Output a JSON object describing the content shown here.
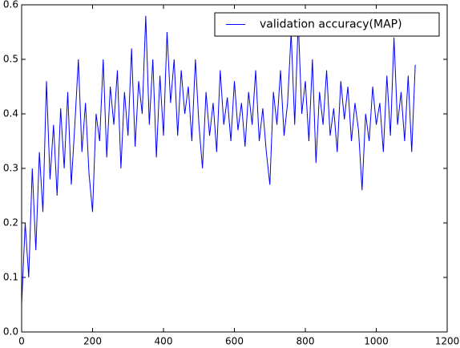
{
  "chart_data": {
    "type": "line",
    "x": [
      0,
      10,
      20,
      30,
      40,
      50,
      60,
      70,
      80,
      90,
      100,
      110,
      120,
      130,
      140,
      150,
      160,
      170,
      180,
      190,
      200,
      210,
      220,
      230,
      240,
      250,
      260,
      270,
      280,
      290,
      300,
      310,
      320,
      330,
      340,
      350,
      360,
      370,
      380,
      390,
      400,
      410,
      420,
      430,
      440,
      450,
      460,
      470,
      480,
      490,
      500,
      510,
      520,
      530,
      540,
      550,
      560,
      570,
      580,
      590,
      600,
      610,
      620,
      630,
      640,
      650,
      660,
      670,
      680,
      690,
      700,
      710,
      720,
      730,
      740,
      750,
      760,
      770,
      780,
      790,
      800,
      810,
      820,
      830,
      840,
      850,
      860,
      870,
      880,
      890,
      900,
      910,
      920,
      930,
      940,
      950,
      960,
      970,
      980,
      990,
      1000,
      1010,
      1020,
      1030,
      1040,
      1050,
      1060,
      1070,
      1080,
      1090,
      1100,
      1110
    ],
    "series": [
      {
        "name": "validation accuracy(MAP)",
        "color": "#0000ff",
        "values": [
          0.05,
          0.2,
          0.1,
          0.3,
          0.15,
          0.33,
          0.22,
          0.46,
          0.28,
          0.38,
          0.25,
          0.41,
          0.3,
          0.44,
          0.27,
          0.38,
          0.5,
          0.33,
          0.42,
          0.29,
          0.22,
          0.4,
          0.35,
          0.5,
          0.32,
          0.45,
          0.38,
          0.48,
          0.3,
          0.44,
          0.36,
          0.52,
          0.34,
          0.46,
          0.4,
          0.58,
          0.38,
          0.5,
          0.32,
          0.47,
          0.36,
          0.55,
          0.42,
          0.5,
          0.36,
          0.48,
          0.4,
          0.45,
          0.35,
          0.5,
          0.38,
          0.3,
          0.44,
          0.36,
          0.42,
          0.33,
          0.48,
          0.38,
          0.43,
          0.35,
          0.46,
          0.37,
          0.42,
          0.34,
          0.44,
          0.38,
          0.48,
          0.35,
          0.41,
          0.33,
          0.27,
          0.44,
          0.38,
          0.48,
          0.36,
          0.42,
          0.55,
          0.38,
          0.57,
          0.4,
          0.46,
          0.35,
          0.5,
          0.31,
          0.44,
          0.38,
          0.48,
          0.36,
          0.41,
          0.33,
          0.46,
          0.39,
          0.45,
          0.35,
          0.42,
          0.37,
          0.26,
          0.4,
          0.35,
          0.45,
          0.38,
          0.42,
          0.33,
          0.47,
          0.36,
          0.54,
          0.38,
          0.44,
          0.35,
          0.47,
          0.33,
          0.49
        ]
      }
    ],
    "xlim": [
      0,
      1200
    ],
    "xticks": [
      0,
      200,
      400,
      600,
      800,
      1000,
      1200
    ],
    "ylim": [
      0,
      0.6
    ],
    "yticks": [
      {
        "value": 0,
        "label": "0.0"
      },
      0.1,
      0.2,
      0.3,
      0.4,
      0.5,
      0.6
    ],
    "grid": false,
    "legend": "upper right"
  }
}
